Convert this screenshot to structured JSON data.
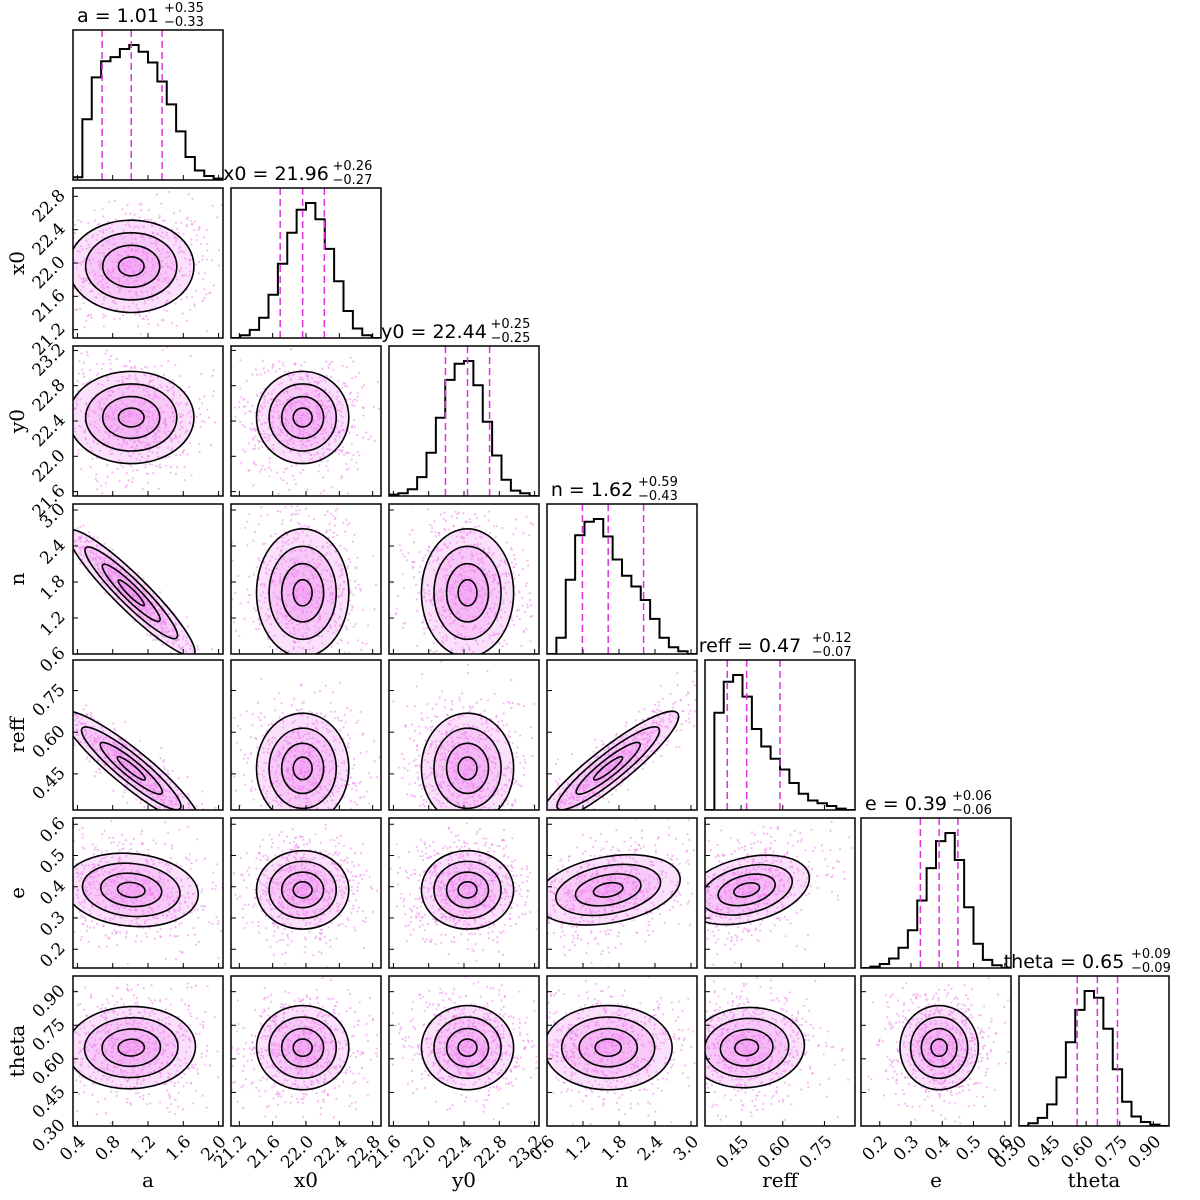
{
  "chart_data": {
    "type": "corner",
    "parameters": [
      {
        "name": "a",
        "label": "a",
        "median": 1.01,
        "err_plus": 0.35,
        "err_minus": 0.33,
        "range": [
          0.35,
          2.05
        ],
        "ticks": [
          0.4,
          0.8,
          1.2,
          1.6,
          2.0
        ],
        "tick_labels": [
          "0.4",
          "0.8",
          "1.2",
          "1.6",
          "2.0"
        ],
        "hist": [
          0.02,
          0.45,
          0.76,
          0.88,
          0.91,
          0.97,
          1.0,
          0.95,
          0.87,
          0.73,
          0.56,
          0.36,
          0.17,
          0.07,
          0.03,
          0.01
        ]
      },
      {
        "name": "x0",
        "label": "x0",
        "median": 21.96,
        "err_plus": 0.26,
        "err_minus": 0.27,
        "range": [
          21.1,
          22.9
        ],
        "ticks": [
          21.2,
          21.6,
          22.0,
          22.4,
          22.8
        ],
        "tick_labels": [
          "21.2",
          "21.6",
          "22.0",
          "22.4",
          "22.8"
        ],
        "hist": [
          0.0,
          0.02,
          0.06,
          0.15,
          0.32,
          0.55,
          0.78,
          0.95,
          1.0,
          0.88,
          0.66,
          0.42,
          0.2,
          0.07,
          0.02,
          0.0
        ]
      },
      {
        "name": "y0",
        "label": "y0",
        "median": 22.44,
        "err_plus": 0.25,
        "err_minus": 0.25,
        "range": [
          21.55,
          23.25
        ],
        "ticks": [
          21.6,
          22.0,
          22.4,
          22.8,
          23.2
        ],
        "tick_labels": [
          "21.6",
          "22.0",
          "22.4",
          "22.8",
          "23.2"
        ],
        "hist": [
          0.01,
          0.02,
          0.05,
          0.14,
          0.32,
          0.58,
          0.86,
          0.98,
          1.0,
          0.82,
          0.55,
          0.3,
          0.12,
          0.04,
          0.02,
          0.0
        ]
      },
      {
        "name": "n",
        "label": "n",
        "median": 1.62,
        "err_plus": 0.59,
        "err_minus": 0.43,
        "range": [
          0.6,
          3.1
        ],
        "ticks": [
          0.6,
          1.2,
          1.8,
          2.4,
          3.0
        ],
        "tick_labels": [
          "0.6",
          "1.2",
          "1.8",
          "2.4",
          "3.0"
        ],
        "hist": [
          0.0,
          0.12,
          0.55,
          0.88,
          0.98,
          1.0,
          0.87,
          0.7,
          0.58,
          0.5,
          0.4,
          0.26,
          0.12,
          0.05,
          0.02,
          0.0
        ]
      },
      {
        "name": "reff",
        "label": "reff",
        "median": 0.47,
        "err_plus": 0.12,
        "err_minus": 0.07,
        "range": [
          0.32,
          0.86
        ],
        "ticks": [
          0.45,
          0.6,
          0.75
        ],
        "tick_labels": [
          "0.45",
          "0.60",
          "0.75"
        ],
        "hist": [
          0.0,
          0.72,
          0.95,
          1.0,
          0.84,
          0.6,
          0.47,
          0.38,
          0.3,
          0.2,
          0.12,
          0.07,
          0.05,
          0.03,
          0.01,
          0.0
        ]
      },
      {
        "name": "e",
        "label": "e",
        "median": 0.39,
        "err_plus": 0.06,
        "err_minus": 0.06,
        "range": [
          0.14,
          0.62
        ],
        "ticks": [
          0.2,
          0.3,
          0.4,
          0.5,
          0.6
        ],
        "tick_labels": [
          "0.2",
          "0.3",
          "0.4",
          "0.5",
          "0.6"
        ],
        "hist": [
          0.0,
          0.01,
          0.03,
          0.07,
          0.15,
          0.28,
          0.5,
          0.74,
          0.94,
          1.0,
          0.8,
          0.45,
          0.18,
          0.06,
          0.02,
          0.0
        ]
      },
      {
        "name": "theta",
        "label": "theta",
        "median": 0.65,
        "err_plus": 0.09,
        "err_minus": 0.09,
        "range": [
          0.3,
          0.97
        ],
        "ticks": [
          0.3,
          0.45,
          0.6,
          0.75,
          0.9
        ],
        "tick_labels": [
          "0.30",
          "0.45",
          "0.60",
          "0.75",
          "0.90"
        ],
        "hist": [
          0.0,
          0.02,
          0.06,
          0.16,
          0.36,
          0.62,
          0.86,
          1.0,
          0.95,
          0.72,
          0.42,
          0.18,
          0.07,
          0.03,
          0.01,
          0.0
        ]
      }
    ],
    "titles": [
      {
        "prefix": "a = 1.01",
        "plus": "+0.35",
        "minus": "−0.33"
      },
      {
        "prefix": "x0 = 21.96",
        "plus": "+0.26",
        "minus": "−0.27"
      },
      {
        "prefix": "y0 = 22.44",
        "plus": "+0.25",
        "minus": "−0.25"
      },
      {
        "prefix": "n = 1.62",
        "plus": "+0.59",
        "minus": "−0.43"
      },
      {
        "prefix": "reff = 0.47",
        "plus": "+0.12",
        "minus": "−0.07"
      },
      {
        "prefix": "e = 0.39",
        "plus": "+0.06",
        "minus": "−0.06"
      },
      {
        "prefix": "theta = 0.65",
        "plus": "+0.09",
        "minus": "−0.09"
      }
    ],
    "correlations": {
      "n|a": -0.97,
      "reff|a": -0.93,
      "reff|n": 0.92,
      "e|a": -0.15,
      "e|n": 0.3,
      "e|reff": 0.35,
      "theta|a": 0.05,
      "theta|reff": 0.1
    },
    "colors": {
      "samples": "#ee82ee",
      "quantile_lines": "#dd33dd",
      "contours": "#000000",
      "histogram": "#000000"
    }
  }
}
